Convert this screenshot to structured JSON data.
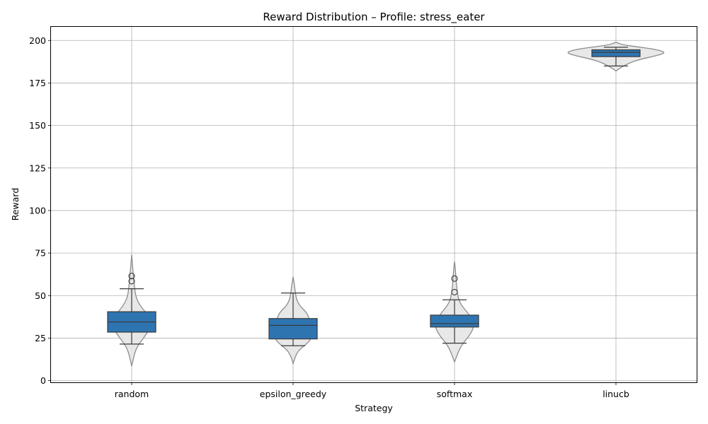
{
  "chart_data": {
    "type": "violin",
    "title": "Reward Distribution – Profile: stress_eater",
    "xlabel": "Strategy",
    "ylabel": "Reward",
    "categories": [
      "random",
      "epsilon_greedy",
      "softmax",
      "linucb"
    ],
    "ylim": [
      -1,
      208
    ],
    "yticks": [
      0,
      25,
      50,
      75,
      100,
      125,
      150,
      175,
      200
    ],
    "ytick_labels": [
      "0",
      "25",
      "50",
      "75",
      "100",
      "125",
      "150",
      "175",
      "200"
    ],
    "grid": true,
    "colors": {
      "box": "#2e74b0",
      "violin_fill": "#e6e6e6",
      "violin_edge": "#8c8c8c",
      "whisker": "#3a3a3a",
      "grid": "#b0b0b0"
    },
    "boxes": [
      {
        "name": "random",
        "q1": 28.5,
        "median": 34.5,
        "q3": 40.5,
        "whisker_low": 21.5,
        "whisker_high": 54,
        "outliers": [
          61.5,
          58.5
        ]
      },
      {
        "name": "epsilon_greedy",
        "q1": 24.5,
        "median": 32.5,
        "q3": 36.5,
        "whisker_low": 20.5,
        "whisker_high": 51.5,
        "outliers": []
      },
      {
        "name": "softmax",
        "q1": 31.5,
        "median": 33.5,
        "q3": 38.5,
        "whisker_low": 22,
        "whisker_high": 47.5,
        "outliers": [
          60,
          52
        ]
      },
      {
        "name": "linucb",
        "q1": 190.5,
        "median": 193,
        "q3": 194.5,
        "whisker_low": 185,
        "whisker_high": 196,
        "outliers": []
      }
    ],
    "violins": [
      {
        "name": "random",
        "profile": [
          [
            8.5,
            0
          ],
          [
            12,
            0.02
          ],
          [
            18,
            0.06
          ],
          [
            22,
            0.12
          ],
          [
            26,
            0.2
          ],
          [
            30,
            0.27
          ],
          [
            34,
            0.3
          ],
          [
            38,
            0.27
          ],
          [
            42,
            0.17
          ],
          [
            46,
            0.1
          ],
          [
            50,
            0.06
          ],
          [
            56,
            0.04
          ],
          [
            62,
            0.025
          ],
          [
            68,
            0.012
          ],
          [
            74,
            0
          ]
        ]
      },
      {
        "name": "epsilon_greedy",
        "profile": [
          [
            10,
            0
          ],
          [
            14,
            0.03
          ],
          [
            18,
            0.09
          ],
          [
            21,
            0.19
          ],
          [
            24,
            0.27
          ],
          [
            27,
            0.28
          ],
          [
            30,
            0.28
          ],
          [
            33,
            0.27
          ],
          [
            36,
            0.25
          ],
          [
            40,
            0.21
          ],
          [
            44,
            0.1
          ],
          [
            48,
            0.05
          ],
          [
            53,
            0.03
          ],
          [
            57,
            0.017
          ],
          [
            61,
            0
          ]
        ]
      },
      {
        "name": "softmax",
        "profile": [
          [
            11,
            0
          ],
          [
            14,
            0.03
          ],
          [
            18,
            0.07
          ],
          [
            22,
            0.13
          ],
          [
            26,
            0.22
          ],
          [
            30,
            0.28
          ],
          [
            33,
            0.3
          ],
          [
            36,
            0.27
          ],
          [
            40,
            0.2
          ],
          [
            44,
            0.11
          ],
          [
            48,
            0.06
          ],
          [
            54,
            0.035
          ],
          [
            60,
            0.022
          ],
          [
            66,
            0.012
          ],
          [
            70,
            0
          ]
        ]
      },
      {
        "name": "linucb",
        "profile": [
          [
            182,
            0
          ],
          [
            183.5,
            0.05
          ],
          [
            185,
            0.12
          ],
          [
            187,
            0.22
          ],
          [
            189,
            0.38
          ],
          [
            191,
            0.62
          ],
          [
            193,
            0.78
          ],
          [
            195,
            0.58
          ],
          [
            196.5,
            0.28
          ],
          [
            197.5,
            0.1
          ],
          [
            198.5,
            0.03
          ],
          [
            199,
            0
          ]
        ]
      }
    ]
  }
}
